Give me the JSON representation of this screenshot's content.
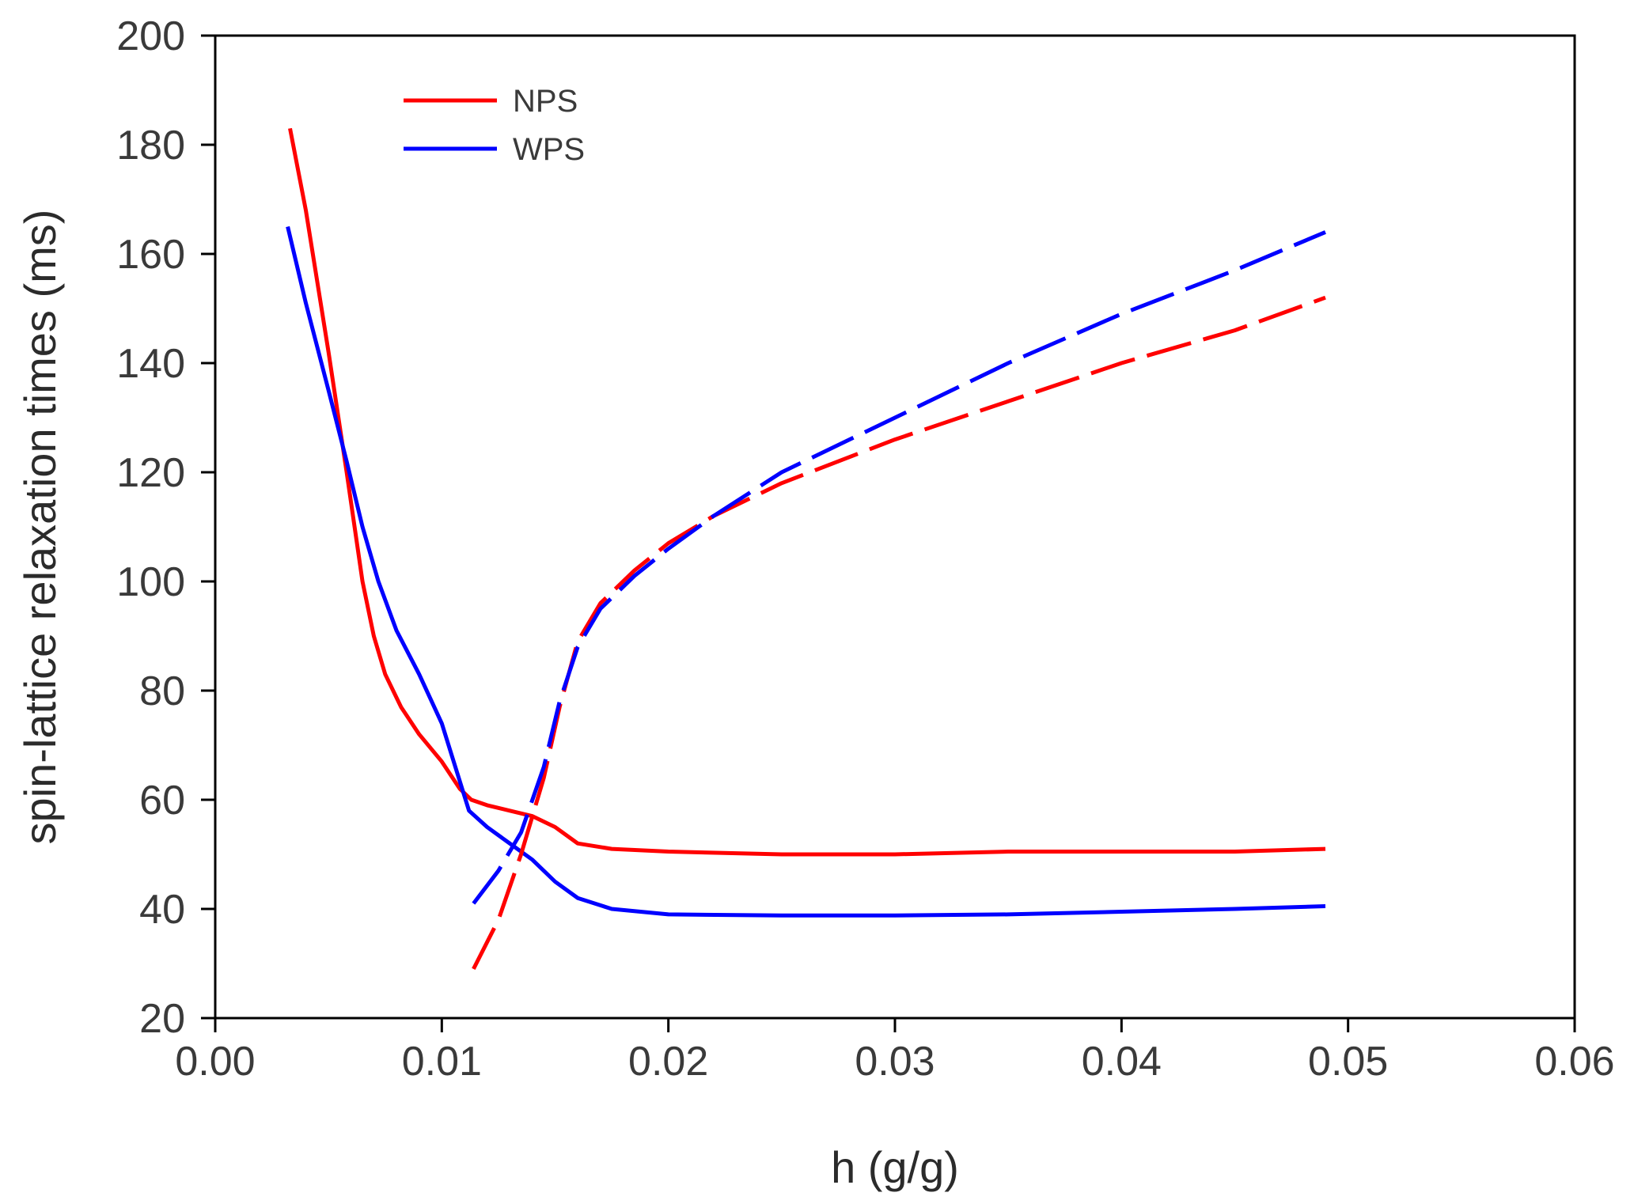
{
  "chart_data": {
    "type": "line",
    "xlabel": "h (g/g)",
    "ylabel": "spin-lattice relaxation times (ms)",
    "xlim": [
      0,
      0.06
    ],
    "ylim": [
      20,
      200
    ],
    "x_ticks": [
      "0.00",
      "0.01",
      "0.02",
      "0.03",
      "0.04",
      "0.05",
      "0.06"
    ],
    "y_ticks": [
      "20",
      "40",
      "60",
      "80",
      "100",
      "120",
      "140",
      "160",
      "180",
      "200"
    ],
    "grid": false,
    "legend_position": "top-left",
    "legend": [
      {
        "name": "NPS",
        "color": "#ff0000"
      },
      {
        "name": "WPS",
        "color": "#0000ff"
      }
    ],
    "series": [
      {
        "name": "NPS",
        "group": "NPS",
        "style": "solid",
        "color": "#ff0000",
        "points": [
          [
            0.0033,
            183
          ],
          [
            0.004,
            168
          ],
          [
            0.005,
            142
          ],
          [
            0.0058,
            120
          ],
          [
            0.0065,
            100
          ],
          [
            0.007,
            90
          ],
          [
            0.0075,
            83
          ],
          [
            0.0082,
            77
          ],
          [
            0.009,
            72
          ],
          [
            0.01,
            67
          ],
          [
            0.0108,
            62
          ],
          [
            0.0113,
            60
          ],
          [
            0.012,
            59
          ],
          [
            0.013,
            58
          ],
          [
            0.014,
            57
          ],
          [
            0.015,
            55
          ],
          [
            0.016,
            52
          ],
          [
            0.0175,
            51
          ],
          [
            0.02,
            50.5
          ],
          [
            0.025,
            50
          ],
          [
            0.03,
            50
          ],
          [
            0.035,
            50.5
          ],
          [
            0.04,
            50.5
          ],
          [
            0.045,
            50.5
          ],
          [
            0.049,
            51
          ]
        ]
      },
      {
        "name": "WPS",
        "group": "WPS",
        "style": "solid",
        "color": "#0000ff",
        "points": [
          [
            0.0032,
            165
          ],
          [
            0.004,
            151
          ],
          [
            0.005,
            135
          ],
          [
            0.0058,
            122
          ],
          [
            0.0065,
            110
          ],
          [
            0.0072,
            100
          ],
          [
            0.008,
            91
          ],
          [
            0.009,
            83
          ],
          [
            0.01,
            74
          ],
          [
            0.0106,
            66
          ],
          [
            0.0112,
            58
          ],
          [
            0.012,
            55
          ],
          [
            0.013,
            52
          ],
          [
            0.014,
            49
          ],
          [
            0.015,
            45
          ],
          [
            0.016,
            42
          ],
          [
            0.0175,
            40
          ],
          [
            0.02,
            39
          ],
          [
            0.025,
            38.8
          ],
          [
            0.03,
            38.8
          ],
          [
            0.035,
            39
          ],
          [
            0.04,
            39.5
          ],
          [
            0.045,
            40
          ],
          [
            0.049,
            40.5
          ]
        ]
      },
      {
        "name": "NPS",
        "group": "NPS",
        "style": "dashed",
        "color": "#ff0000",
        "points": [
          [
            0.0114,
            29
          ],
          [
            0.0125,
            38
          ],
          [
            0.0135,
            50
          ],
          [
            0.0145,
            64
          ],
          [
            0.0152,
            77
          ],
          [
            0.016,
            89
          ],
          [
            0.017,
            96
          ],
          [
            0.0185,
            102
          ],
          [
            0.02,
            107
          ],
          [
            0.022,
            112
          ],
          [
            0.025,
            118
          ],
          [
            0.03,
            126
          ],
          [
            0.035,
            133
          ],
          [
            0.04,
            140
          ],
          [
            0.045,
            146
          ],
          [
            0.049,
            152
          ]
        ]
      },
      {
        "name": "WPS",
        "group": "WPS",
        "style": "dashed",
        "color": "#0000ff",
        "points": [
          [
            0.0114,
            41
          ],
          [
            0.0125,
            47
          ],
          [
            0.0135,
            54
          ],
          [
            0.0145,
            66
          ],
          [
            0.0152,
            78
          ],
          [
            0.016,
            88
          ],
          [
            0.017,
            95
          ],
          [
            0.0185,
            101
          ],
          [
            0.02,
            106
          ],
          [
            0.022,
            112
          ],
          [
            0.025,
            120
          ],
          [
            0.03,
            130
          ],
          [
            0.035,
            140
          ],
          [
            0.04,
            149
          ],
          [
            0.045,
            157
          ],
          [
            0.049,
            164
          ]
        ]
      }
    ]
  }
}
